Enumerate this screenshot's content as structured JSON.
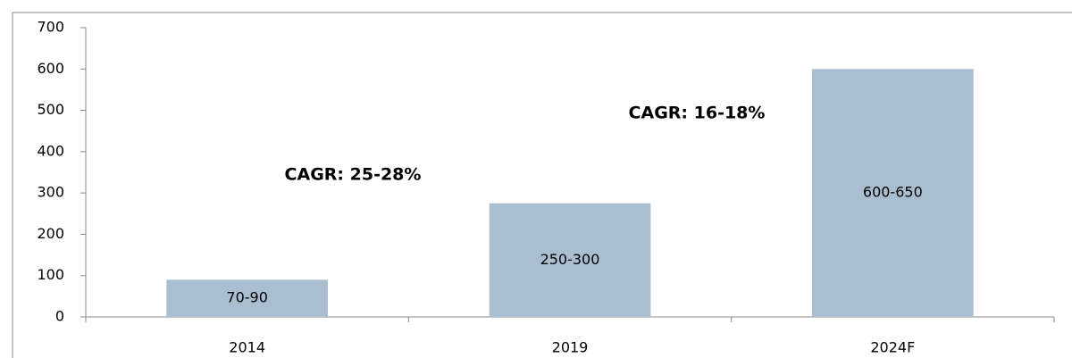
{
  "chart_data": {
    "type": "bar",
    "categories": [
      "2014",
      "2019",
      "2024F"
    ],
    "values": [
      90,
      275,
      600
    ],
    "value_labels": [
      "70-90",
      "250-300",
      "600-650"
    ],
    "color": "#a9bfd1",
    "ylim": [
      0,
      700
    ],
    "yticks": [
      0,
      100,
      200,
      300,
      400,
      500,
      600,
      700
    ],
    "grid": false,
    "annotations": [
      "CAGR: 25-28%",
      "CAGR: 16-18%"
    ]
  }
}
